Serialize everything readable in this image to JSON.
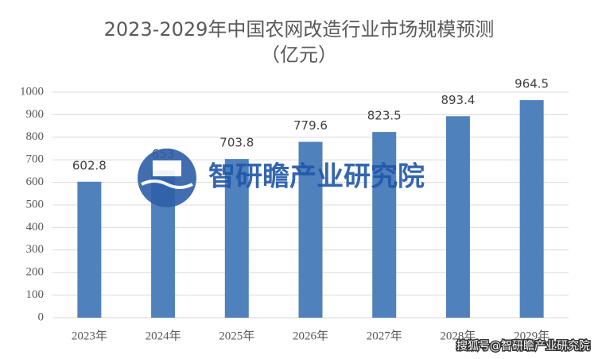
{
  "chart_data": {
    "type": "bar",
    "title": "2023-2029年中国农网改造行业市场规模预测",
    "subtitle": "（亿元）",
    "categories": [
      "2023年",
      "2024年",
      "2025年",
      "2026年",
      "2027年",
      "2028年",
      "2029年"
    ],
    "values": [
      602.8,
      653,
      703.8,
      779.6,
      823.5,
      893.4,
      964.5
    ],
    "color": "#4f81bd",
    "ylim": [
      0,
      1000
    ],
    "yticks": [
      0,
      100,
      200,
      300,
      400,
      500,
      600,
      700,
      800,
      900,
      1000
    ],
    "grid": true,
    "watermark": "智研瞻产业研究院",
    "source": "搜狐号@智研瞻产业研究院"
  }
}
